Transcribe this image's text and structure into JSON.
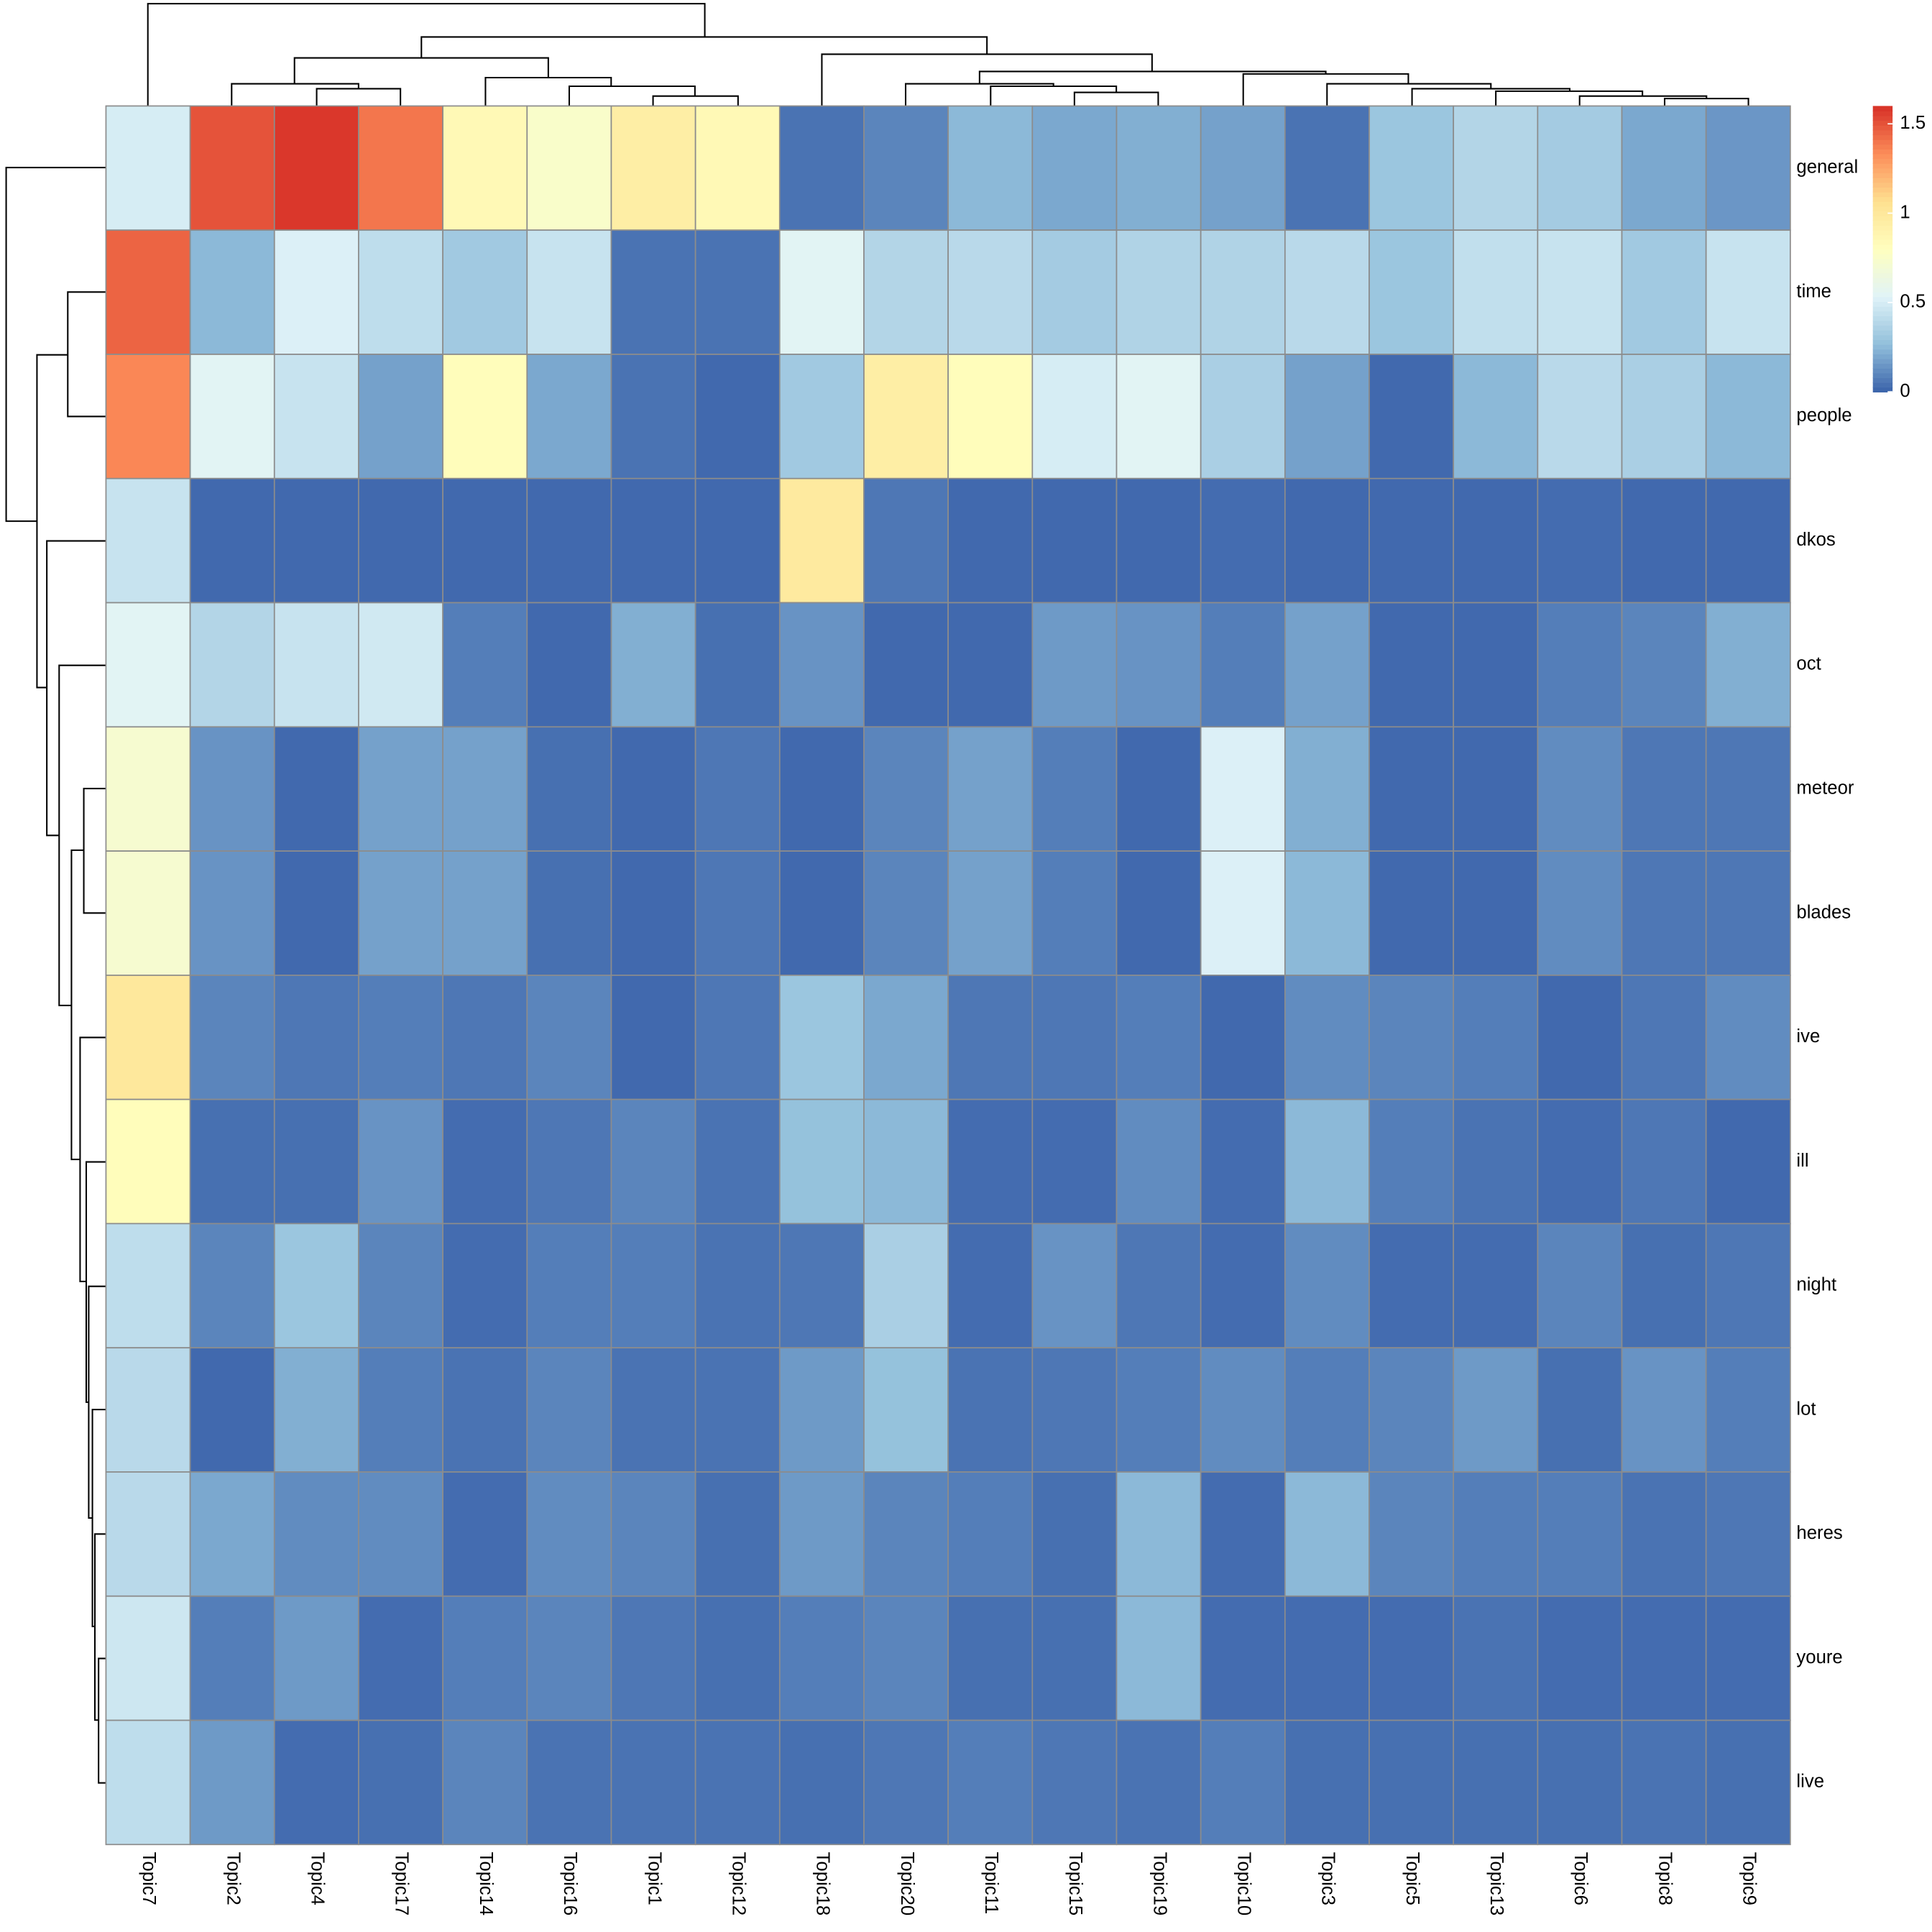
{
  "chart_data": {
    "type": "heatmap",
    "columns": [
      "Topic7",
      "Topic2",
      "Topic4",
      "Topic17",
      "Topic14",
      "Topic16",
      "Topic1",
      "Topic12",
      "Topic18",
      "Topic20",
      "Topic11",
      "Topic15",
      "Topic19",
      "Topic10",
      "Topic3",
      "Topic5",
      "Topic13",
      "Topic6",
      "Topic8",
      "Topic9"
    ],
    "rows": [
      "general",
      "time",
      "people",
      "dkos",
      "oct",
      "meteor",
      "blades",
      "ive",
      "ill",
      "night",
      "lot",
      "heres",
      "youre",
      "live"
    ],
    "values": [
      [
        0.5,
        1.5,
        1.58,
        1.4,
        0.85,
        0.75,
        0.95,
        0.85,
        0.05,
        0.1,
        0.25,
        0.2,
        0.22,
        0.18,
        0.05,
        0.3,
        0.38,
        0.33,
        0.2,
        0.15
      ],
      [
        1.45,
        0.25,
        0.52,
        0.42,
        0.32,
        0.45,
        0.05,
        0.05,
        0.55,
        0.38,
        0.4,
        0.33,
        0.37,
        0.37,
        0.4,
        0.3,
        0.43,
        0.45,
        0.32,
        0.45
      ],
      [
        1.35,
        0.55,
        0.45,
        0.18,
        0.82,
        0.2,
        0.05,
        0.02,
        0.32,
        0.95,
        0.82,
        0.5,
        0.55,
        0.35,
        0.18,
        0.02,
        0.25,
        0.4,
        0.35,
        0.25
      ],
      [
        0.45,
        0.02,
        0.02,
        0.02,
        0.02,
        0.02,
        0.02,
        0.02,
        0.98,
        0.06,
        0.02,
        0.02,
        0.02,
        0.03,
        0.02,
        0.02,
        0.02,
        0.03,
        0.02,
        0.02
      ],
      [
        0.55,
        0.38,
        0.45,
        0.48,
        0.08,
        0.02,
        0.22,
        0.04,
        0.14,
        0.02,
        0.02,
        0.16,
        0.14,
        0.08,
        0.18,
        0.02,
        0.02,
        0.08,
        0.1,
        0.22
      ],
      [
        0.72,
        0.14,
        0.02,
        0.18,
        0.18,
        0.04,
        0.02,
        0.06,
        0.02,
        0.1,
        0.18,
        0.08,
        0.02,
        0.52,
        0.22,
        0.02,
        0.02,
        0.12,
        0.06,
        0.06
      ],
      [
        0.72,
        0.14,
        0.02,
        0.18,
        0.18,
        0.04,
        0.02,
        0.06,
        0.02,
        0.1,
        0.18,
        0.08,
        0.02,
        0.52,
        0.25,
        0.02,
        0.02,
        0.12,
        0.06,
        0.06
      ],
      [
        1.0,
        0.1,
        0.06,
        0.08,
        0.06,
        0.1,
        0.02,
        0.06,
        0.3,
        0.2,
        0.06,
        0.06,
        0.08,
        0.02,
        0.12,
        0.1,
        0.08,
        0.02,
        0.06,
        0.12
      ],
      [
        0.82,
        0.04,
        0.04,
        0.14,
        0.03,
        0.06,
        0.1,
        0.05,
        0.28,
        0.25,
        0.03,
        0.03,
        0.12,
        0.03,
        0.25,
        0.08,
        0.05,
        0.03,
        0.06,
        0.02
      ],
      [
        0.42,
        0.1,
        0.3,
        0.1,
        0.03,
        0.08,
        0.08,
        0.05,
        0.06,
        0.35,
        0.03,
        0.14,
        0.06,
        0.03,
        0.12,
        0.03,
        0.03,
        0.1,
        0.04,
        0.06
      ],
      [
        0.4,
        0.02,
        0.22,
        0.08,
        0.05,
        0.1,
        0.05,
        0.05,
        0.16,
        0.28,
        0.05,
        0.06,
        0.08,
        0.12,
        0.08,
        0.1,
        0.16,
        0.04,
        0.14,
        0.08
      ],
      [
        0.4,
        0.2,
        0.12,
        0.12,
        0.03,
        0.12,
        0.1,
        0.04,
        0.16,
        0.1,
        0.08,
        0.04,
        0.25,
        0.03,
        0.25,
        0.1,
        0.08,
        0.08,
        0.05,
        0.06
      ],
      [
        0.47,
        0.08,
        0.16,
        0.03,
        0.08,
        0.1,
        0.06,
        0.04,
        0.08,
        0.1,
        0.04,
        0.04,
        0.25,
        0.03,
        0.03,
        0.03,
        0.05,
        0.03,
        0.03,
        0.03
      ],
      [
        0.42,
        0.16,
        0.03,
        0.04,
        0.1,
        0.05,
        0.05,
        0.05,
        0.04,
        0.06,
        0.08,
        0.06,
        0.05,
        0.08,
        0.04,
        0.04,
        0.04,
        0.04,
        0.05,
        0.04
      ]
    ],
    "colorscale": [
      "#3a62aa",
      "#91bfdb",
      "#e0f3f8",
      "#ffffbf",
      "#fee090",
      "#fc8d59",
      "#d73027"
    ],
    "colorbar_lim": [
      0,
      1.6
    ],
    "colorbar_ticks": [
      0,
      0.5,
      1,
      1.5
    ],
    "cell_border_color": "#8c8c8c"
  }
}
